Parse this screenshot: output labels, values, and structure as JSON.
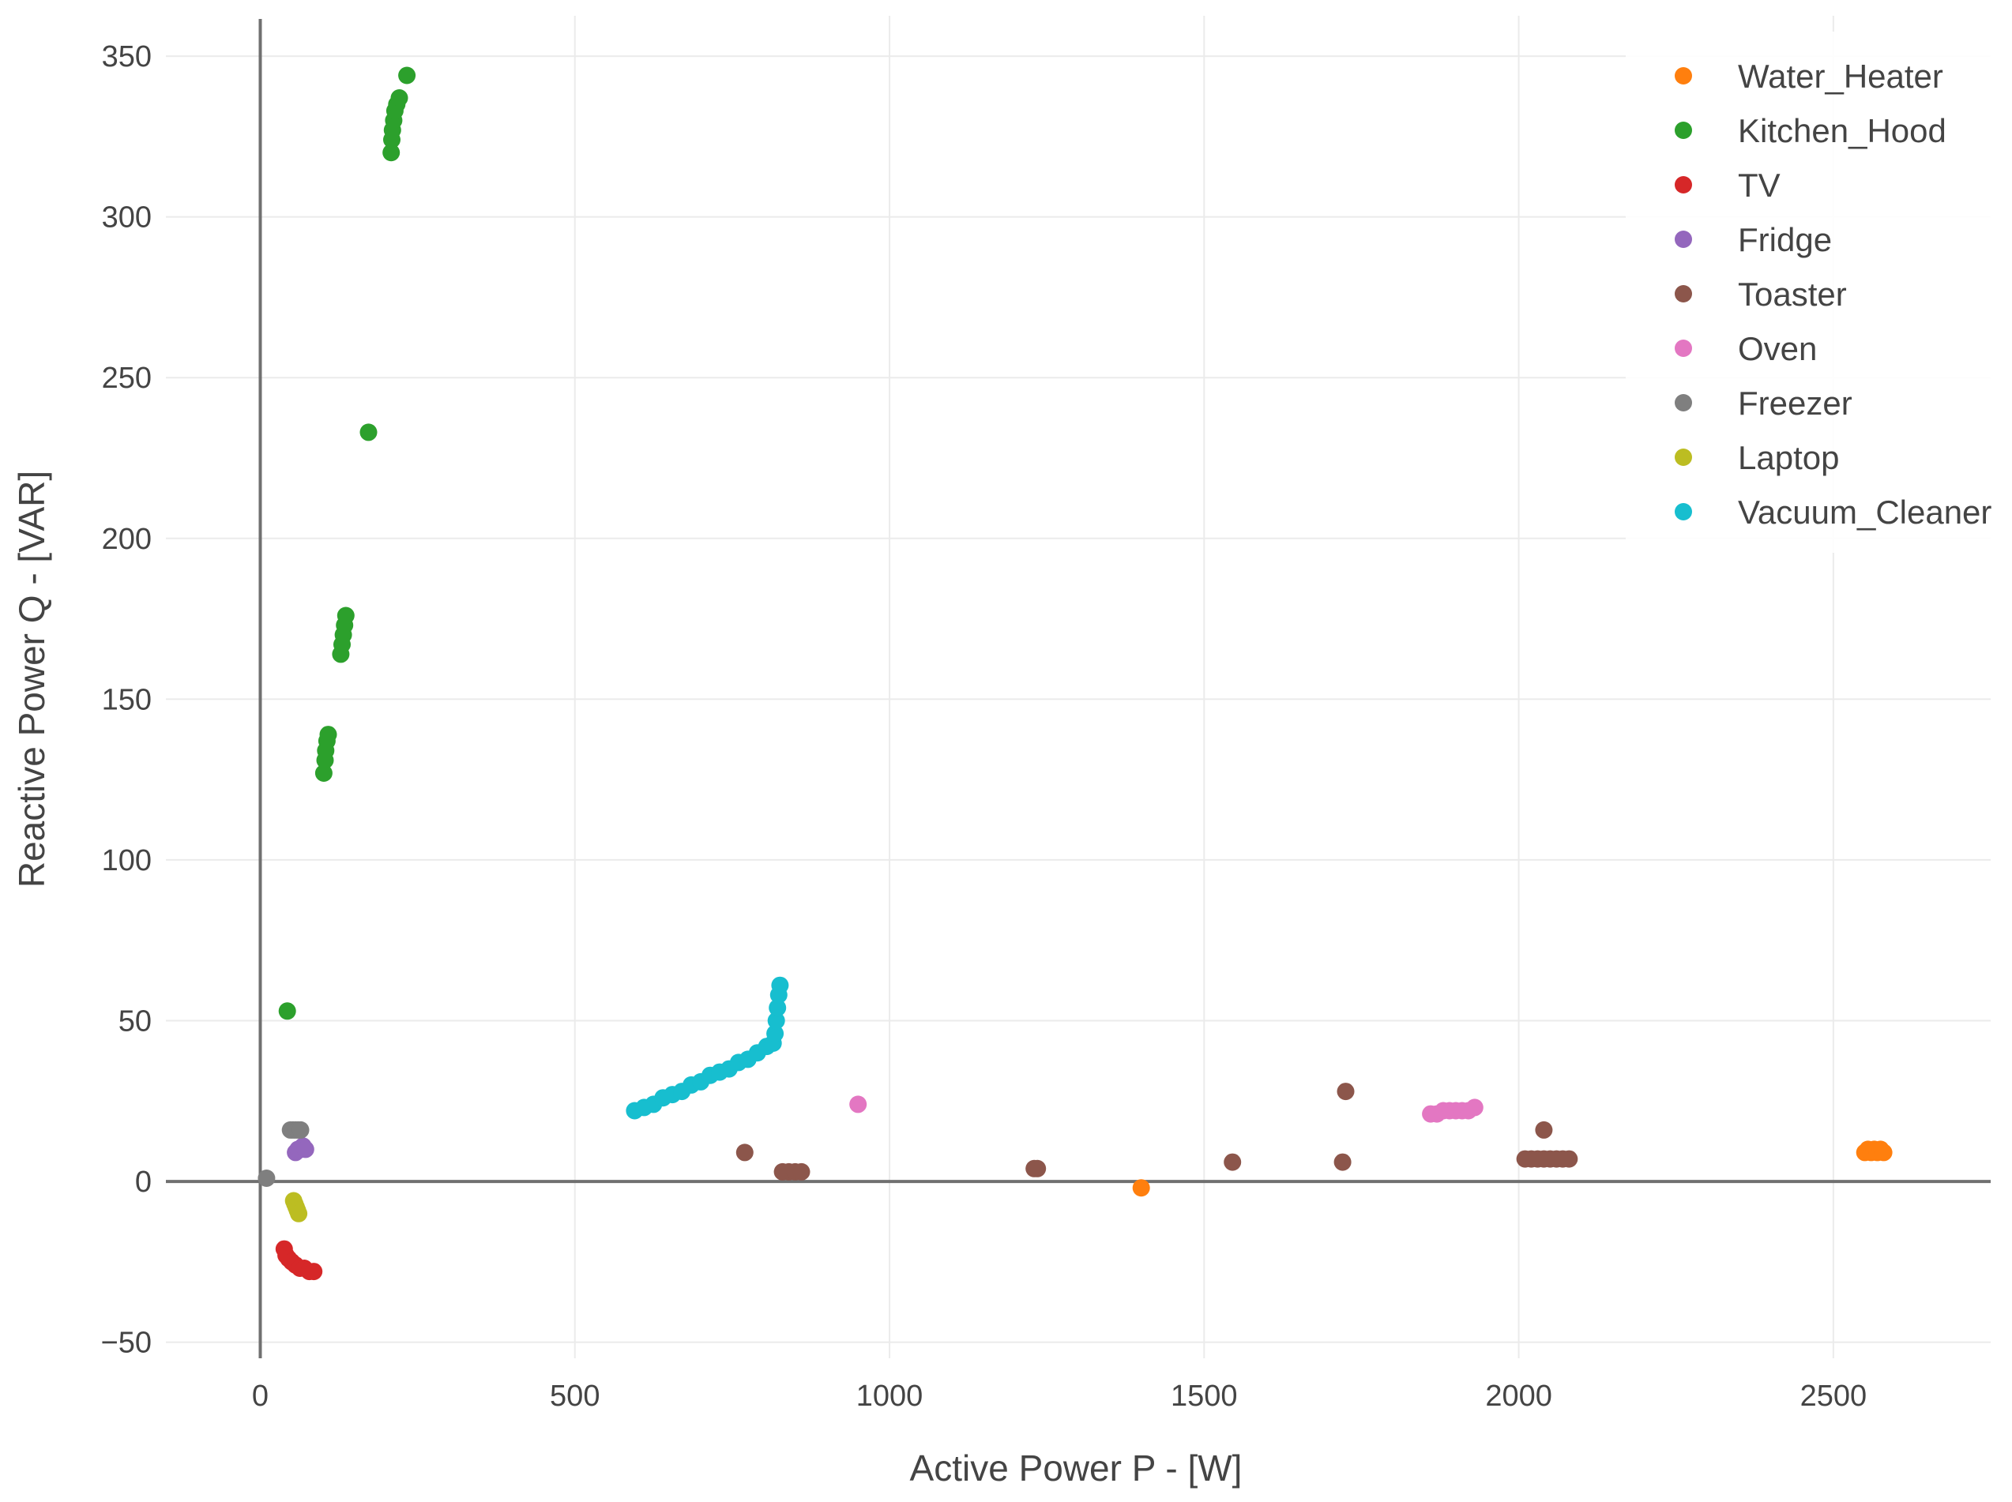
{
  "chart_data": {
    "type": "scatter",
    "xlabel": "Active Power P - [W]",
    "ylabel": "Reactive Power Q - [VAR]",
    "xlim": [
      -150,
      2750
    ],
    "ylim": [
      -55,
      365
    ],
    "xticks": [
      0,
      500,
      1000,
      1500,
      2000,
      2500
    ],
    "xtick_labels": [
      "0",
      "500",
      "1000",
      "1500",
      "2000",
      "2500"
    ],
    "yticks": [
      -50,
      0,
      50,
      100,
      150,
      200,
      250,
      300,
      350
    ],
    "ytick_labels": [
      "−50",
      "0",
      "50",
      "100",
      "150",
      "200",
      "250",
      "300",
      "350"
    ],
    "grid": true,
    "legend_position": "top-right",
    "series": [
      {
        "name": "Water_Heater",
        "color": "#ff7f0e",
        "points": [
          [
            1400,
            -2
          ],
          [
            2550,
            9
          ],
          [
            2555,
            10
          ],
          [
            2560,
            9
          ],
          [
            2565,
            10
          ],
          [
            2570,
            9
          ],
          [
            2575,
            10
          ],
          [
            2580,
            9
          ]
        ]
      },
      {
        "name": "Kitchen_Hood",
        "color": "#2ca02c",
        "points": [
          [
            43,
            53
          ],
          [
            101,
            127
          ],
          [
            103,
            131
          ],
          [
            104,
            134
          ],
          [
            106,
            137
          ],
          [
            108,
            139
          ],
          [
            128,
            164
          ],
          [
            130,
            167
          ],
          [
            132,
            170
          ],
          [
            134,
            173
          ],
          [
            136,
            176
          ],
          [
            172,
            233
          ],
          [
            208,
            320
          ],
          [
            209,
            324
          ],
          [
            210,
            327
          ],
          [
            212,
            330
          ],
          [
            214,
            333
          ],
          [
            217,
            335
          ],
          [
            221,
            337
          ],
          [
            233,
            344
          ]
        ]
      },
      {
        "name": "TV",
        "color": "#d62728",
        "points": [
          [
            38,
            -21
          ],
          [
            41,
            -23
          ],
          [
            45,
            -24
          ],
          [
            50,
            -25
          ],
          [
            56,
            -26
          ],
          [
            63,
            -27
          ],
          [
            70,
            -27
          ],
          [
            78,
            -28
          ],
          [
            85,
            -28
          ]
        ]
      },
      {
        "name": "Fridge",
        "color": "#9467bd",
        "points": [
          [
            56,
            9
          ],
          [
            60,
            10
          ],
          [
            64,
            10
          ],
          [
            68,
            11
          ],
          [
            72,
            10
          ]
        ]
      },
      {
        "name": "Toaster",
        "color": "#8c564b",
        "points": [
          [
            770,
            9
          ],
          [
            830,
            3
          ],
          [
            840,
            3
          ],
          [
            850,
            3
          ],
          [
            860,
            3
          ],
          [
            1230,
            4
          ],
          [
            1235,
            4
          ],
          [
            1545,
            6
          ],
          [
            1720,
            6
          ],
          [
            1725,
            28
          ],
          [
            2010,
            7
          ],
          [
            2020,
            7
          ],
          [
            2030,
            7
          ],
          [
            2040,
            7
          ],
          [
            2050,
            7
          ],
          [
            2060,
            7
          ],
          [
            2070,
            7
          ],
          [
            2080,
            7
          ],
          [
            2040,
            16
          ]
        ]
      },
      {
        "name": "Oven",
        "color": "#e377c2",
        "points": [
          [
            950,
            24
          ],
          [
            1860,
            21
          ],
          [
            1870,
            21
          ],
          [
            1880,
            22
          ],
          [
            1890,
            22
          ],
          [
            1900,
            22
          ],
          [
            1910,
            22
          ],
          [
            1920,
            22
          ],
          [
            1930,
            23
          ]
        ]
      },
      {
        "name": "Freezer",
        "color": "#7f7f7f",
        "points": [
          [
            10,
            1
          ],
          [
            48,
            16
          ],
          [
            52,
            16
          ],
          [
            56,
            16
          ],
          [
            60,
            16
          ],
          [
            64,
            16
          ]
        ]
      },
      {
        "name": "Laptop",
        "color": "#bcbd22",
        "points": [
          [
            53,
            -6
          ],
          [
            55,
            -7
          ],
          [
            57,
            -8
          ],
          [
            59,
            -9
          ],
          [
            61,
            -10
          ]
        ]
      },
      {
        "name": "Vacuum_Cleaner",
        "color": "#17becf",
        "points": [
          [
            595,
            22
          ],
          [
            610,
            23
          ],
          [
            625,
            24
          ],
          [
            640,
            26
          ],
          [
            655,
            27
          ],
          [
            670,
            28
          ],
          [
            685,
            30
          ],
          [
            700,
            31
          ],
          [
            715,
            33
          ],
          [
            730,
            34
          ],
          [
            745,
            35
          ],
          [
            760,
            37
          ],
          [
            775,
            38
          ],
          [
            790,
            40
          ],
          [
            805,
            42
          ],
          [
            815,
            43
          ],
          [
            818,
            46
          ],
          [
            820,
            50
          ],
          [
            822,
            54
          ],
          [
            824,
            58
          ],
          [
            826,
            61
          ]
        ]
      }
    ]
  }
}
